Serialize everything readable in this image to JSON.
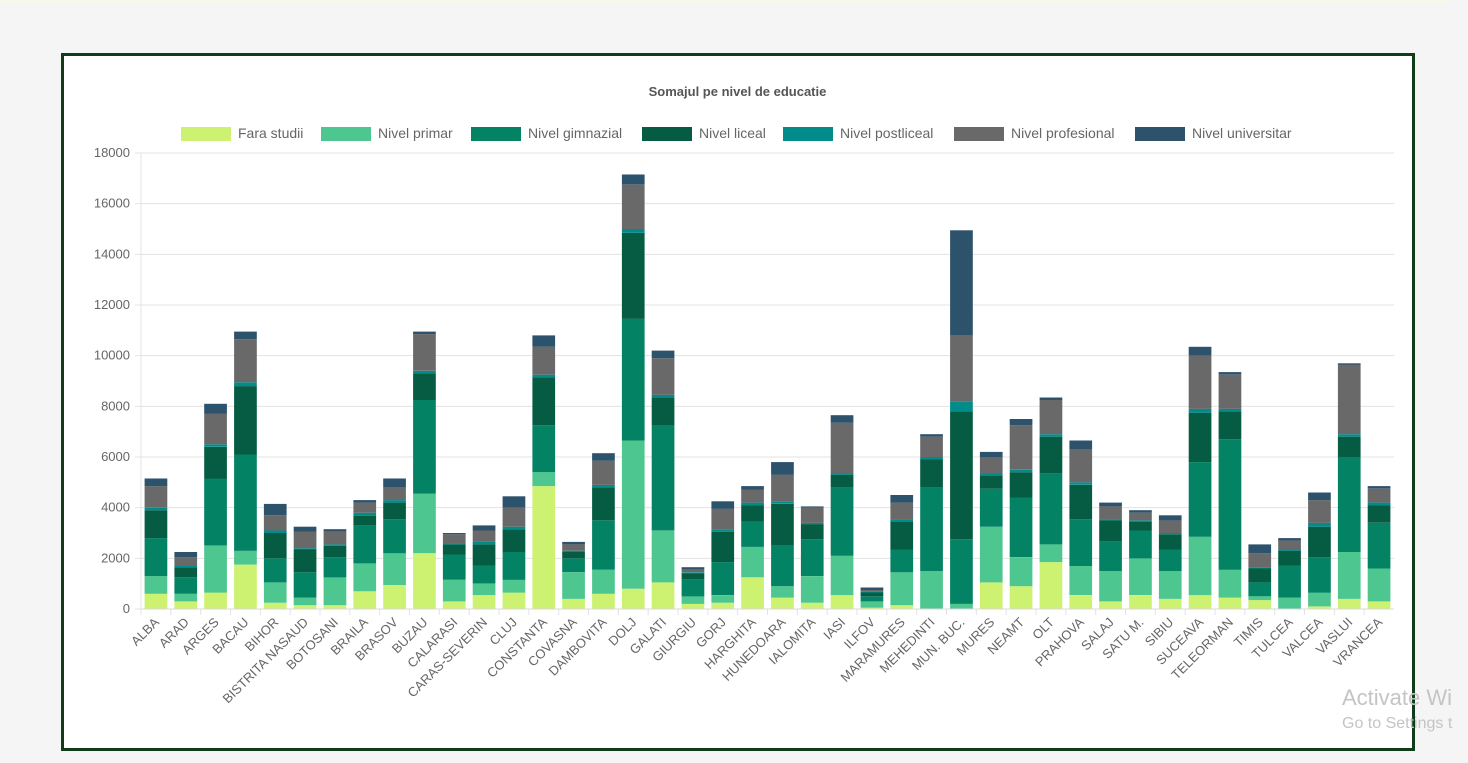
{
  "chart_data": {
    "type": "bar",
    "stacked": true,
    "title": "Somajul pe nivel de educatie",
    "legend_position": "top",
    "grid": true,
    "ylim": [
      0,
      18000
    ],
    "yticks": [
      "0",
      "2000",
      "4000",
      "6000",
      "8000",
      "10000",
      "12000",
      "14000",
      "16000",
      "18000"
    ],
    "categories": [
      "ALBA",
      "ARAD",
      "ARGES",
      "BACAU",
      "BIHOR",
      "BISTRITA NASAUD",
      "BOTOSANI",
      "BRAILA",
      "BRASOV",
      "BUZAU",
      "CALARASI",
      "CARAS-SEVERIN",
      "CLUJ",
      "CONSTANTA",
      "COVASNA",
      "DAMBOVITA",
      "DOLJ",
      "GALATI",
      "GIURGIU",
      "GORJ",
      "HARGHITA",
      "HUNEDOARA",
      "IALOMITA",
      "IASI",
      "ILFOV",
      "MARAMURES",
      "MEHEDINTI",
      "MUN. BUC.",
      "MURES",
      "NEAMT",
      "OLT",
      "PRAHOVA",
      "SALAJ",
      "SATU M.",
      "SIBIU",
      "SUCEAVA",
      "TELEORMAN",
      "TIMIS",
      "TULCEA",
      "VALCEA",
      "VASLUI",
      "VRANCEA"
    ],
    "series": [
      {
        "name": "Fara studii",
        "color": "#cdf171",
        "values": [
          600,
          300,
          650,
          1750,
          250,
          150,
          150,
          700,
          950,
          2200,
          300,
          550,
          650,
          4850,
          400,
          600,
          800,
          1050,
          200,
          250,
          1250,
          450,
          250,
          550,
          50,
          150,
          0,
          0,
          1050,
          900,
          1850,
          550,
          300,
          550,
          400,
          550,
          450,
          350,
          0,
          100,
          400,
          300
        ]
      },
      {
        "name": "Nivel primar",
        "color": "#4dc690",
        "values": [
          700,
          300,
          1850,
          550,
          800,
          300,
          1100,
          1100,
          1250,
          2350,
          850,
          450,
          500,
          550,
          1050,
          950,
          5850,
          2050,
          300,
          300,
          1200,
          450,
          1050,
          1550,
          250,
          1300,
          1500,
          200,
          2200,
          1150,
          700,
          1150,
          1200,
          1450,
          1100,
          2300,
          1100,
          150,
          450,
          550,
          1850,
          1300
        ]
      },
      {
        "name": "Nivel gimnazial",
        "color": "#048264",
        "values": [
          1500,
          650,
          2650,
          3800,
          950,
          1000,
          800,
          1500,
          1350,
          3700,
          1000,
          700,
          1100,
          1850,
          550,
          1950,
          4800,
          4150,
          650,
          1300,
          1000,
          1600,
          1450,
          2700,
          200,
          900,
          3300,
          2550,
          1500,
          2350,
          2800,
          1850,
          1150,
          1100,
          850,
          2950,
          5150,
          550,
          1250,
          1400,
          3750,
          1800
        ]
      },
      {
        "name": "Nivel liceal",
        "color": "#065c42",
        "values": [
          1100,
          400,
          1250,
          2700,
          1000,
          900,
          450,
          400,
          650,
          1050,
          400,
          850,
          900,
          1900,
          250,
          1300,
          3400,
          1100,
          250,
          1200,
          650,
          1650,
          600,
          500,
          150,
          1100,
          1100,
          5050,
          500,
          1000,
          1450,
          1350,
          850,
          350,
          600,
          1950,
          1100,
          550,
          600,
          1200,
          800,
          700
        ]
      },
      {
        "name": "Nivel postliceal",
        "color": "#028b8b",
        "values": [
          100,
          50,
          100,
          150,
          100,
          50,
          50,
          100,
          100,
          100,
          50,
          100,
          100,
          100,
          50,
          100,
          150,
          100,
          50,
          100,
          100,
          100,
          50,
          50,
          50,
          100,
          100,
          400,
          100,
          100,
          100,
          100,
          50,
          50,
          50,
          150,
          100,
          50,
          50,
          150,
          100,
          100
        ]
      },
      {
        "name": "Nivel profesional",
        "color": "#696969",
        "values": [
          850,
          350,
          1200,
          1700,
          600,
          650,
          500,
          400,
          500,
          1450,
          350,
          450,
          750,
          1100,
          250,
          950,
          1750,
          1450,
          100,
          800,
          500,
          1050,
          600,
          2000,
          50,
          650,
          800,
          2600,
          650,
          1750,
          1350,
          1300,
          500,
          300,
          500,
          2100,
          1350,
          550,
          350,
          900,
          2750,
          550
        ]
      },
      {
        "name": "Nivel universitar",
        "color": "#2d526b",
        "values": [
          300,
          200,
          400,
          300,
          450,
          200,
          100,
          100,
          350,
          100,
          50,
          200,
          450,
          450,
          100,
          300,
          400,
          300,
          100,
          300,
          150,
          500,
          50,
          300,
          100,
          300,
          100,
          4150,
          200,
          250,
          100,
          350,
          150,
          100,
          200,
          350,
          100,
          350,
          100,
          300,
          50,
          100
        ]
      }
    ]
  },
  "watermark": {
    "line1": "Activate Wi",
    "line2": "Go to Settings t"
  }
}
